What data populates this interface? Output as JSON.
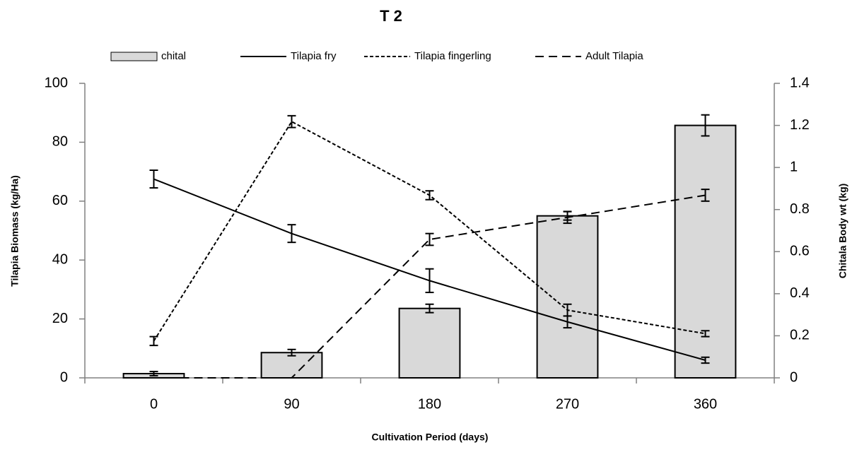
{
  "chart_data": {
    "type": "bar-line",
    "title": "T 2",
    "x_label": "Cultivation Period (days)",
    "y_label": "Tilapia Biomass (kg/Ha)",
    "y2_label": "Chitala Body wt (kg)",
    "categories": [
      "0",
      "90",
      "180",
      "270",
      "360"
    ],
    "ylim": [
      0,
      100
    ],
    "yticks": [
      0,
      20,
      40,
      60,
      80,
      100
    ],
    "y2lim": [
      0,
      1.4
    ],
    "y2ticks": [
      0,
      0.2,
      0.4,
      0.6,
      0.8,
      1,
      1.2,
      1.4
    ],
    "grid": false,
    "legend": "top",
    "series": [
      {
        "name": "chital",
        "type": "bar",
        "axis": "y2",
        "color": "#d9d9d9",
        "values": [
          0.02,
          0.12,
          0.33,
          0.77,
          1.2
        ],
        "errors": [
          0.01,
          0.015,
          0.02,
          0.02,
          0.05
        ]
      },
      {
        "name": "Tilapia fry",
        "type": "line",
        "dash": "solid",
        "color": "#000000",
        "values": [
          67.5,
          49,
          33,
          19,
          6
        ],
        "errors": [
          3,
          3,
          4,
          2,
          1
        ]
      },
      {
        "name": "Tilapia fingerling",
        "type": "line",
        "dash": "dotted",
        "color": "#000000",
        "values": [
          12.5,
          87,
          62,
          23,
          15
        ],
        "errors": [
          1.5,
          2,
          1.5,
          2,
          1
        ]
      },
      {
        "name": "Adult Tilapia",
        "type": "line",
        "dash": "dashed",
        "color": "#000000",
        "values": [
          0,
          0,
          47,
          54.5,
          62
        ],
        "errors": [
          0,
          0,
          2,
          2,
          2
        ]
      }
    ]
  }
}
